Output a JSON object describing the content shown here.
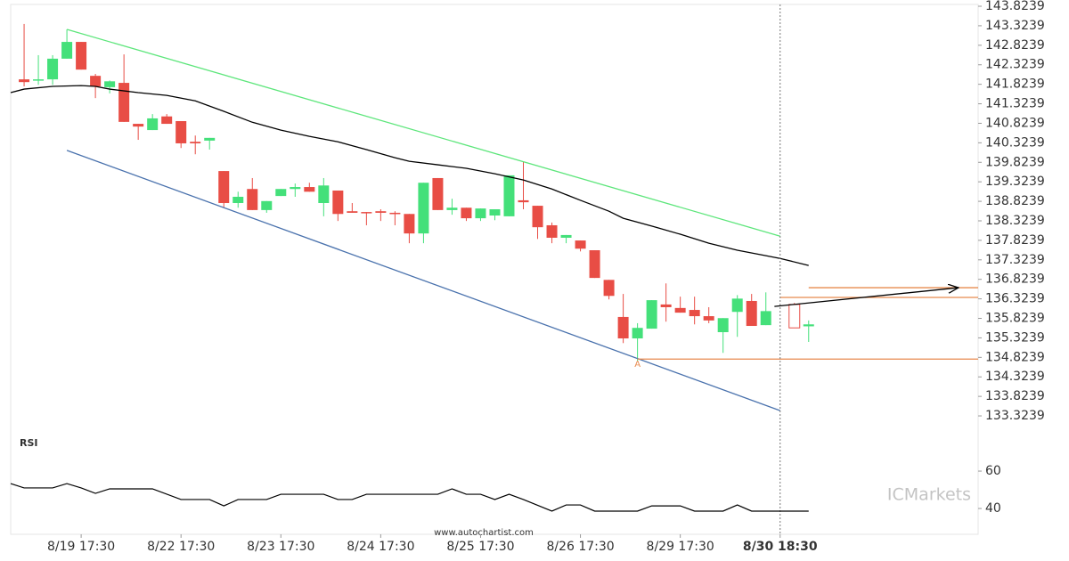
{
  "chart_data": [
    {
      "type": "candlestick",
      "xlim": [
        -0.94,
        66.88
      ],
      "xticks": [
        {
          "value": 4,
          "label": "8/19 17:30"
        },
        {
          "value": 11,
          "label": "8/22 17:30"
        },
        {
          "value": 18,
          "label": "8/23 17:30"
        },
        {
          "value": 25,
          "label": "8/24 17:30"
        },
        {
          "value": 32,
          "label": "8/25 17:30"
        },
        {
          "value": 39,
          "label": "8/26 17:30"
        },
        {
          "value": 46,
          "label": "8/29 17:30"
        },
        {
          "value": 53,
          "label": "8/30 18:30"
        }
      ],
      "ylim": [
        132.8,
        143.87
      ],
      "yticks": [
        143.8239,
        143.3239,
        142.8239,
        142.3239,
        141.8239,
        141.3239,
        140.8239,
        140.3239,
        139.8239,
        139.3239,
        138.8239,
        138.3239,
        137.8239,
        137.3239,
        136.8239,
        136.3239,
        135.8239,
        135.3239,
        134.8239,
        134.3239,
        133.8239,
        133.3239
      ],
      "up_color": "#44e07a",
      "down_color": "#e84d45",
      "open": [
        141.95,
        141.92,
        141.95,
        142.48,
        142.91,
        142.04,
        141.75,
        141.86,
        140.81,
        140.65,
        141.0,
        140.88,
        140.35,
        140.38,
        139.6,
        138.78,
        139.14,
        138.6,
        138.96,
        139.14,
        139.19,
        138.78,
        139.1,
        138.57,
        138.55,
        138.57,
        138.53,
        138.5,
        138.0,
        139.42,
        138.6,
        138.66,
        138.39,
        138.46,
        138.44,
        138.85,
        138.71,
        138.21,
        137.89,
        137.82,
        137.57,
        136.81,
        135.86,
        135.31,
        135.56,
        136.18,
        136.09,
        136.04,
        135.88,
        135.47,
        135.99,
        136.27,
        135.65
      ],
      "high": [
        143.37,
        142.57,
        142.57,
        143.23,
        142.91,
        142.09,
        141.92,
        142.59,
        140.81,
        141.06,
        141.06,
        140.88,
        140.51,
        140.45,
        139.6,
        139.07,
        139.42,
        138.83,
        139.14,
        139.28,
        139.3,
        139.42,
        139.1,
        138.78,
        138.55,
        138.62,
        138.57,
        138.5,
        139.3,
        139.42,
        138.89,
        138.66,
        138.64,
        138.62,
        139.49,
        139.83,
        138.71,
        138.28,
        137.96,
        137.82,
        137.57,
        136.81,
        136.45,
        135.7,
        136.29,
        136.72,
        136.38,
        136.38,
        136.11,
        135.83,
        136.42,
        136.45,
        136.49
      ],
      "low": [
        141.77,
        141.81,
        141.81,
        142.48,
        142.2,
        141.47,
        141.59,
        140.86,
        140.4,
        140.65,
        140.81,
        140.19,
        140.03,
        140.15,
        138.66,
        138.66,
        138.6,
        138.53,
        138.96,
        138.94,
        139.07,
        138.44,
        138.32,
        138.53,
        138.21,
        138.32,
        138.21,
        137.75,
        137.75,
        138.6,
        138.48,
        138.32,
        138.32,
        138.34,
        138.44,
        138.62,
        137.86,
        137.75,
        137.75,
        137.54,
        136.86,
        136.31,
        135.19,
        134.74,
        135.56,
        135.74,
        135.97,
        135.67,
        135.7,
        134.94,
        135.35,
        135.63,
        135.65
      ],
      "close": [
        141.88,
        141.95,
        142.48,
        142.91,
        142.2,
        141.77,
        141.9,
        140.86,
        140.74,
        140.95,
        140.81,
        140.31,
        140.31,
        140.45,
        138.78,
        138.94,
        138.6,
        138.83,
        139.14,
        139.19,
        139.07,
        139.23,
        138.5,
        138.53,
        138.53,
        138.53,
        138.5,
        138.0,
        139.3,
        138.6,
        138.66,
        138.39,
        138.64,
        138.62,
        139.49,
        138.8,
        138.16,
        137.89,
        137.96,
        137.61,
        136.86,
        136.4,
        135.31,
        135.58,
        136.29,
        136.11,
        135.97,
        135.88,
        135.77,
        135.83,
        136.33,
        135.63,
        136.01
      ],
      "pending": {
        "x": [
          54,
          55
        ],
        "open": [
          136.18,
          135.62
        ],
        "high": [
          136.22,
          135.77
        ],
        "low": [
          135.58,
          135.22
        ],
        "close": [
          135.58,
          135.67
        ]
      },
      "lines": [
        {
          "color": "#000000",
          "x": [
            -0.94,
            0,
            2,
            4,
            5,
            6,
            8,
            10,
            12,
            14,
            16,
            18,
            20,
            22,
            24,
            26,
            27,
            29,
            31,
            33,
            35,
            37,
            39,
            41,
            42,
            44,
            46,
            48,
            50,
            52,
            53,
            55
          ],
          "values": [
            141.61,
            141.7,
            141.77,
            141.79,
            141.77,
            141.7,
            141.61,
            141.54,
            141.4,
            141.13,
            140.85,
            140.65,
            140.49,
            140.35,
            140.15,
            139.94,
            139.85,
            139.76,
            139.67,
            139.53,
            139.37,
            139.14,
            138.85,
            138.57,
            138.39,
            138.19,
            137.98,
            137.75,
            137.57,
            137.43,
            137.36,
            137.18
          ]
        },
        {
          "color": "#5ee67c",
          "x": [
            3,
            53
          ],
          "values": [
            143.23,
            137.93
          ]
        },
        {
          "color": "#4a72ad",
          "x": [
            3,
            53
          ],
          "values": [
            140.13,
            133.46
          ]
        },
        {
          "color": "#e88a4e",
          "x": [
            55,
            66.88
          ],
          "values": [
            136.61,
            136.61
          ]
        },
        {
          "color": "#e88a4e",
          "x": [
            53,
            66.88
          ],
          "values": [
            136.36,
            136.36
          ]
        },
        {
          "color": "#e88a4e",
          "x": [
            43,
            66.88
          ],
          "values": [
            134.78,
            134.78
          ]
        },
        {
          "color": "#000000",
          "x": [
            52.6,
            65.5
          ],
          "values": [
            136.13,
            136.61
          ],
          "arrow": true
        }
      ],
      "vline": 53,
      "annotations": [
        {
          "text": "A",
          "x": 43,
          "y": 134.65,
          "color": "#e88a4e"
        }
      ]
    },
    {
      "type": "line",
      "title": "RSI",
      "xlim": [
        -0.94,
        66.88
      ],
      "ylim": [
        26.2,
        78.6
      ],
      "yticks": [
        60,
        40
      ],
      "color": "#000000",
      "x": [
        -0.94,
        0,
        2,
        3,
        4,
        5,
        6,
        9,
        11,
        13,
        14,
        15,
        17,
        18,
        21,
        22,
        23,
        24,
        29,
        30,
        31,
        32,
        33,
        34,
        35,
        37,
        38,
        39,
        40,
        43,
        44,
        46,
        47,
        49,
        50,
        51,
        55
      ],
      "values": [
        53.3,
        51.0,
        51.0,
        53.3,
        51.0,
        48.1,
        50.5,
        50.5,
        44.8,
        44.8,
        41.4,
        44.8,
        44.8,
        47.6,
        47.6,
        44.8,
        44.8,
        47.6,
        47.6,
        50.5,
        47.6,
        47.6,
        44.8,
        47.6,
        44.8,
        38.6,
        41.9,
        41.9,
        38.6,
        38.6,
        41.4,
        41.4,
        38.6,
        38.6,
        41.9,
        38.6,
        38.6
      ]
    }
  ],
  "footer": "www.autochartist.com",
  "watermark": "ICMarkets"
}
